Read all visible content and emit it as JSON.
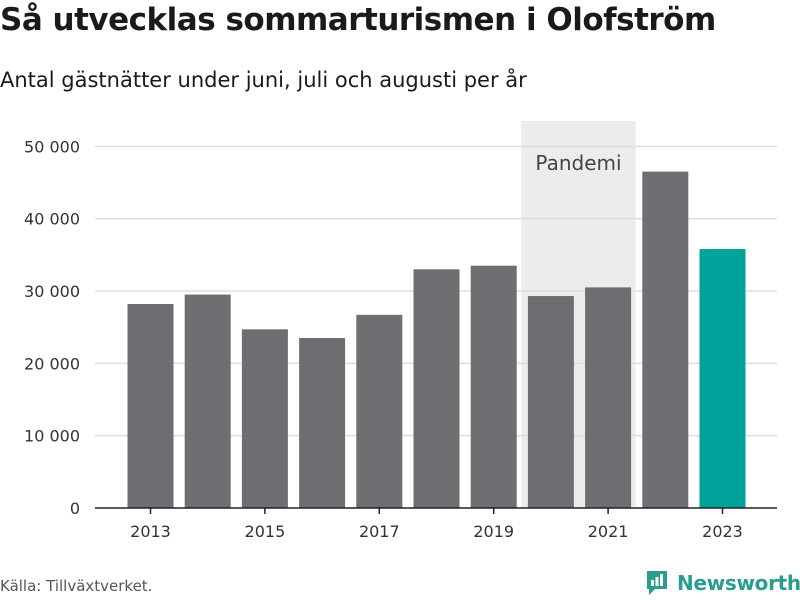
{
  "title": "Så utvecklas sommarturismen i Olofström",
  "subtitle": "Antal gästnätter under juni, juli och augusti per år",
  "source": "Källa: Tillväxtverket.",
  "brand": "Newsworthy",
  "colors": {
    "bar": "#6e6d72",
    "highlight": "#00a39a",
    "band": "#ececec",
    "grid": "#dddddd",
    "axis": "#222222",
    "brand": "#2a9d8f"
  },
  "chart_data": {
    "type": "bar",
    "categories": [
      "2013",
      "2014",
      "2015",
      "2016",
      "2017",
      "2018",
      "2019",
      "2020",
      "2021",
      "2022",
      "2023"
    ],
    "values": [
      28200,
      29500,
      24700,
      23500,
      26700,
      33000,
      33500,
      29300,
      30500,
      46500,
      35800
    ],
    "highlight_index": 10,
    "ylim": [
      0,
      53500
    ],
    "yticks": [
      0,
      10000,
      20000,
      30000,
      40000,
      50000
    ],
    "ytick_labels": [
      "0",
      "10 000",
      "20 000",
      "30 000",
      "40 000",
      "50 000"
    ],
    "xtick_labels": [
      "2013",
      "2015",
      "2017",
      "2019",
      "2021",
      "2023"
    ],
    "shaded_region": {
      "from": "2020",
      "to": "2021",
      "label": "Pandemi"
    },
    "grid": true,
    "legend": false
  }
}
